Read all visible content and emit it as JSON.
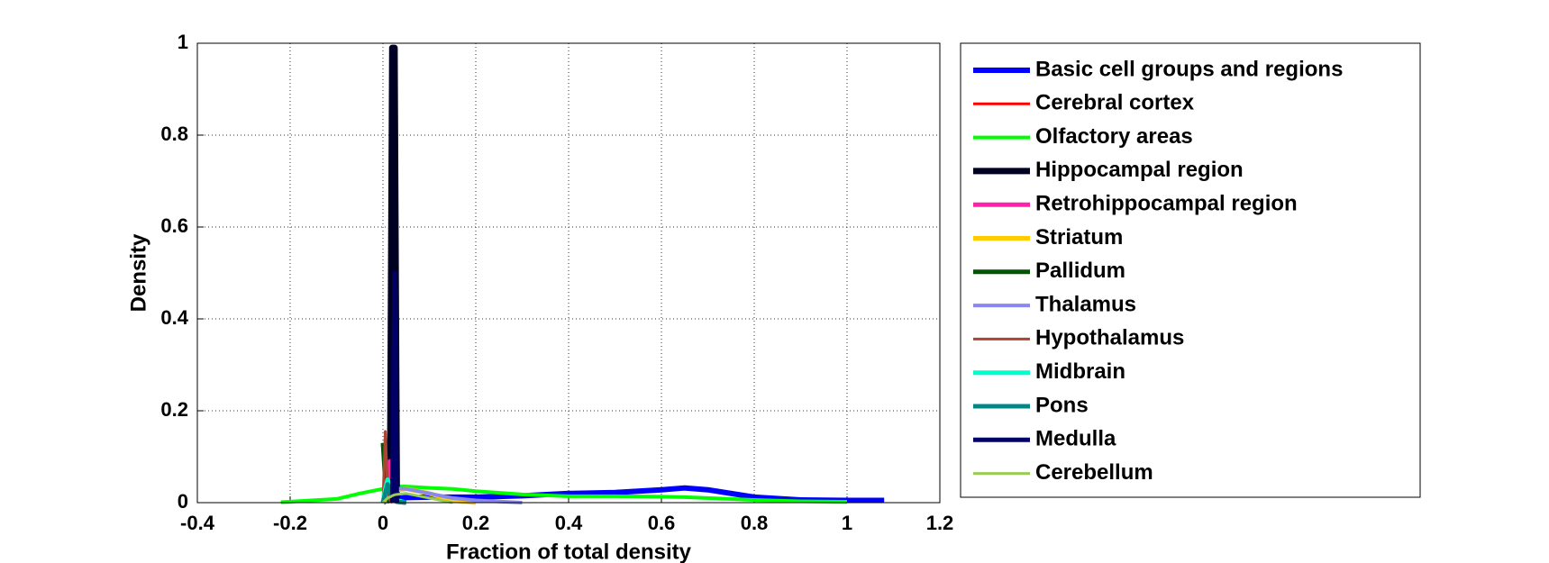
{
  "chart_data": {
    "type": "line",
    "xlabel": "Fraction of total density",
    "ylabel": "Density",
    "x": [
      -0.22,
      -0.1,
      -0.05,
      0,
      0.005,
      0.01,
      0.015,
      0.02,
      0.025,
      0.03,
      0.05,
      0.1,
      0.15,
      0.2,
      0.3,
      0.4,
      0.5,
      0.6,
      0.65,
      0.7,
      0.8,
      0.9,
      1.0,
      1.08,
      1.1
    ],
    "xlim": [
      -0.4,
      1.2
    ],
    "xticks": [
      -0.4,
      -0.2,
      0,
      0.2,
      0.4,
      0.6,
      0.8,
      1,
      1.2
    ],
    "ylim": [
      0,
      1
    ],
    "yticks": [
      0,
      0.2,
      0.4,
      0.6,
      0.8,
      1
    ],
    "grid": true,
    "legend": "outside-right",
    "series": [
      {
        "name": "Basic cell groups and regions",
        "color": "#0000ff",
        "line_width": 6,
        "values": [
          null,
          null,
          null,
          0,
          0.004,
          0.006,
          0.008,
          0.009,
          0.01,
          0.01,
          0.011,
          0.012,
          0.012,
          0.012,
          0.015,
          0.02,
          0.022,
          0.028,
          0.032,
          0.028,
          0.012,
          0.006,
          0.005,
          0.005,
          null
        ]
      },
      {
        "name": "Cerebral cortex",
        "color": "#ff0000",
        "line_width": 3,
        "values": [
          null,
          null,
          null,
          0,
          0.02,
          0.09,
          0.03,
          0.005,
          0.002,
          0.001,
          0,
          null,
          null,
          null,
          null,
          null,
          null,
          null,
          null,
          null,
          null,
          null,
          null,
          null,
          null
        ]
      },
      {
        "name": "Olfactory areas",
        "color": "#00ff00",
        "line_width": 4,
        "values": [
          0.001,
          0.008,
          0.02,
          0.03,
          0.031,
          0.032,
          0.033,
          0.034,
          0.034,
          0.035,
          0.035,
          0.032,
          0.03,
          0.025,
          0.018,
          0.014,
          0.014,
          0.013,
          0.012,
          0.01,
          0.006,
          0.003,
          0.002,
          null,
          0.001
        ]
      },
      {
        "name": "Hippocampal region",
        "color": "#000022",
        "line_width": 7,
        "values": [
          null,
          null,
          null,
          null,
          null,
          null,
          0,
          0.99,
          0.99,
          0,
          null,
          null,
          null,
          null,
          null,
          null,
          null,
          null,
          null,
          null,
          null,
          null,
          null,
          null,
          null
        ]
      },
      {
        "name": "Retrohippocampal region",
        "color": "#ff22aa",
        "line_width": 5,
        "values": [
          null,
          null,
          null,
          0,
          0.01,
          0.04,
          0.09,
          0.02,
          0.005,
          0.002,
          0,
          null,
          null,
          null,
          null,
          null,
          null,
          null,
          null,
          null,
          null,
          null,
          null,
          null,
          null
        ]
      },
      {
        "name": "Striatum",
        "color": "#ffcc00",
        "line_width": 5,
        "values": [
          null,
          null,
          null,
          0,
          0.005,
          0.01,
          0.015,
          0.02,
          0.024,
          0.027,
          0.03,
          0.02,
          0.005,
          0,
          null,
          null,
          null,
          null,
          null,
          null,
          null,
          null,
          null,
          null,
          null
        ]
      },
      {
        "name": "Pallidum",
        "color": "#005500",
        "line_width": 5,
        "values": [
          null,
          null,
          null,
          0.13,
          0.05,
          0.01,
          0,
          null,
          null,
          null,
          null,
          null,
          null,
          null,
          null,
          null,
          null,
          null,
          null,
          null,
          null,
          null,
          null,
          null,
          null
        ]
      },
      {
        "name": "Thalamus",
        "color": "#8888ee",
        "line_width": 4,
        "values": [
          null,
          null,
          null,
          0,
          0.01,
          0.02,
          0.025,
          0.028,
          0.03,
          0.031,
          0.03,
          0.02,
          0.01,
          0.005,
          0,
          null,
          null,
          null,
          null,
          null,
          null,
          null,
          null,
          null,
          null
        ]
      },
      {
        "name": "Hypothalamus",
        "color": "#aa4433",
        "line_width": 3,
        "values": [
          null,
          null,
          null,
          0,
          0.155,
          0.03,
          0.005,
          0,
          null,
          null,
          null,
          null,
          null,
          null,
          null,
          null,
          null,
          null,
          null,
          null,
          null,
          null,
          null,
          null,
          null
        ]
      },
      {
        "name": "Midbrain",
        "color": "#00ffcc",
        "line_width": 5,
        "values": [
          null,
          null,
          null,
          0,
          0.03,
          0.05,
          0.03,
          0.015,
          0.01,
          0.005,
          0,
          null,
          null,
          null,
          null,
          null,
          null,
          null,
          null,
          null,
          null,
          null,
          null,
          null,
          null
        ]
      },
      {
        "name": "Pons",
        "color": "#008888",
        "line_width": 5,
        "values": [
          null,
          null,
          null,
          0,
          0.02,
          0.04,
          0.02,
          0.01,
          0.005,
          0.002,
          0,
          null,
          null,
          null,
          null,
          null,
          null,
          null,
          null,
          null,
          null,
          null,
          null,
          null,
          null
        ]
      },
      {
        "name": "Medulla",
        "color": "#000066",
        "line_width": 5,
        "values": [
          null,
          null,
          null,
          null,
          null,
          null,
          null,
          0,
          0.5,
          0,
          null,
          null,
          null,
          null,
          null,
          null,
          null,
          null,
          null,
          null,
          null,
          null,
          null,
          null,
          null
        ]
      },
      {
        "name": "Cerebellum",
        "color": "#99cc55",
        "line_width": 3,
        "values": [
          null,
          null,
          null,
          0,
          0.005,
          0.01,
          0.012,
          0.015,
          0.017,
          0.018,
          0.02,
          0.01,
          0,
          null,
          null,
          null,
          null,
          null,
          null,
          null,
          null,
          null,
          null,
          null,
          null
        ]
      }
    ]
  }
}
